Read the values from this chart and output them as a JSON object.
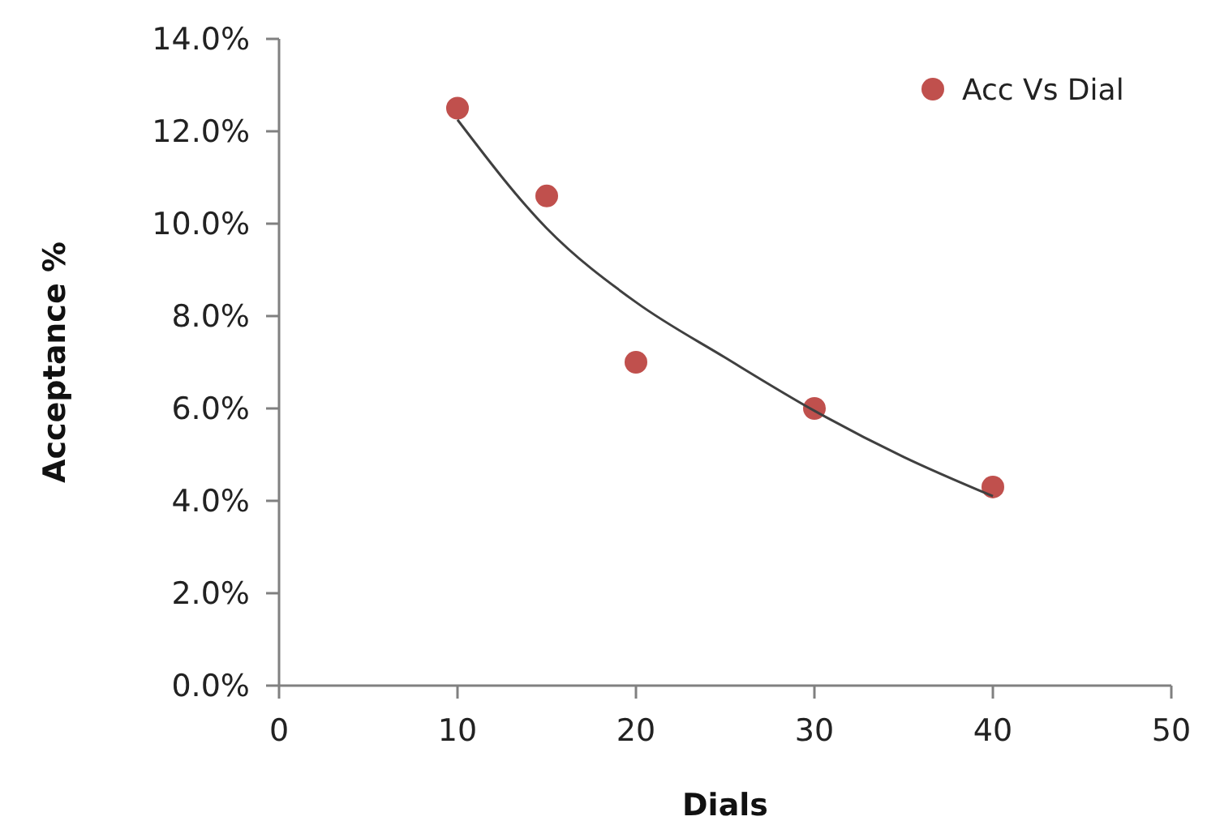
{
  "chart_data": {
    "type": "scatter",
    "xlabel": "Dials",
    "ylabel": "Acceptance %",
    "xlim": [
      0,
      50
    ],
    "xticks": [
      0,
      10,
      20,
      30,
      40,
      50
    ],
    "ylim": [
      0,
      14
    ],
    "yticks": [
      {
        "value": 0,
        "label": "0.0%"
      },
      {
        "value": 2,
        "label": "2.0%"
      },
      {
        "value": 4,
        "label": "4.0%"
      },
      {
        "value": 6,
        "label": "6.0%"
      },
      {
        "value": 8,
        "label": "8.0%"
      },
      {
        "value": 10,
        "label": "10.0%"
      },
      {
        "value": 12,
        "label": "12.0%"
      },
      {
        "value": 14,
        "label": "14.0%"
      }
    ],
    "series": [
      {
        "name": "Acc Vs Dial",
        "marker": "circle",
        "color": "#c0504d",
        "x": [
          10,
          15,
          20,
          30,
          40
        ],
        "values": [
          12.5,
          10.6,
          7.0,
          6.0,
          4.3
        ]
      },
      {
        "type": "line",
        "color": "#404040",
        "x": [
          10,
          15,
          20,
          25,
          30,
          35,
          40
        ],
        "values": [
          12.25,
          9.9,
          8.3,
          7.1,
          5.95,
          4.95,
          4.1
        ]
      }
    ],
    "legend": "top right",
    "grid": false
  }
}
